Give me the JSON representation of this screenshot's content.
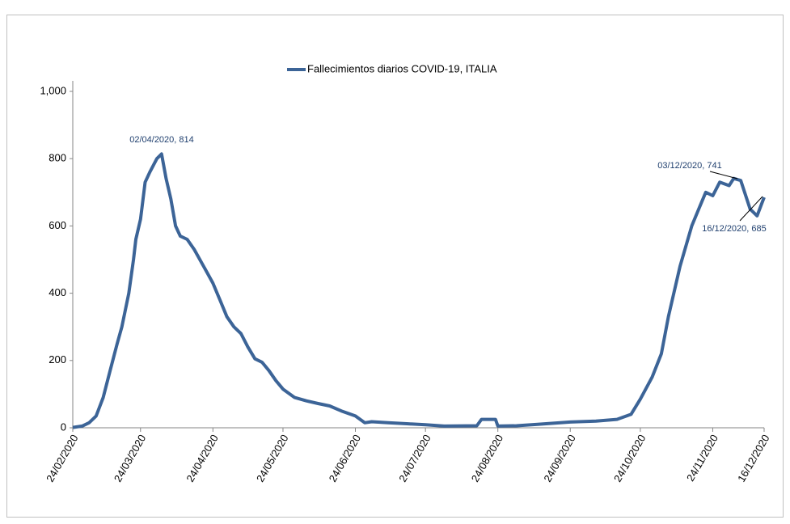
{
  "chart_data": {
    "type": "line",
    "series": [
      {
        "name": "Fallecimientos diarios COVID-19, ITALIA",
        "color": "#3c6497",
        "values": [
          1,
          5,
          15,
          35,
          90,
          170,
          250,
          300,
          400,
          500,
          560,
          620,
          730,
          760,
          800,
          814,
          740,
          680,
          600,
          570,
          560,
          530,
          480,
          430,
          380,
          330,
          300,
          280,
          240,
          205,
          195,
          170,
          140,
          115,
          90,
          80,
          72,
          65,
          50,
          35,
          15,
          18,
          15,
          12,
          9,
          5,
          6,
          25,
          25,
          5,
          6,
          10,
          17,
          20,
          25,
          40,
          85,
          150,
          220,
          330,
          480,
          600,
          650,
          700,
          690,
          730,
          720,
          741,
          735,
          650,
          630,
          685
        ]
      }
    ],
    "x": [
      "24/02/2020",
      "28/02/2020",
      "02/03/2020",
      "05/03/2020",
      "08/03/2020",
      "11/03/2020",
      "14/03/2020",
      "16/03/2020",
      "19/03/2020",
      "21/03/2020",
      "22/03/2020",
      "24/03/2020",
      "26/03/2020",
      "28/03/2020",
      "31/03/2020",
      "02/04/2020",
      "04/04/2020",
      "06/04/2020",
      "08/04/2020",
      "10/04/2020",
      "13/04/2020",
      "16/04/2020",
      "20/04/2020",
      "24/04/2020",
      "27/04/2020",
      "30/04/2020",
      "03/05/2020",
      "06/05/2020",
      "09/05/2020",
      "12/05/2020",
      "15/05/2020",
      "18/05/2020",
      "21/05/2020",
      "24/05/2020",
      "29/05/2020",
      "03/06/2020",
      "08/06/2020",
      "13/06/2020",
      "18/06/2020",
      "24/06/2020",
      "28/06/2020",
      "01/07/2020",
      "08/07/2020",
      "16/07/2020",
      "24/07/2020",
      "01/08/2020",
      "15/08/2020",
      "17/08/2020",
      "23/08/2020",
      "24/08/2020",
      "01/09/2020",
      "10/09/2020",
      "24/09/2020",
      "05/10/2020",
      "14/10/2020",
      "20/10/2020",
      "24/10/2020",
      "29/10/2020",
      "02/11/2020",
      "05/11/2020",
      "10/11/2020",
      "15/11/2020",
      "18/11/2020",
      "21/11/2020",
      "24/11/2020",
      "27/11/2020",
      "01/12/2020",
      "03/12/2020",
      "06/12/2020",
      "10/12/2020",
      "13/12/2020",
      "16/12/2020"
    ],
    "xlim": [
      "24/02/2020",
      "16/12/2020"
    ],
    "xticks": [
      "24/02/2020",
      "24/03/2020",
      "24/04/2020",
      "24/05/2020",
      "24/06/2020",
      "24/07/2020",
      "24/08/2020",
      "24/09/2020",
      "24/10/2020",
      "24/11/2020",
      "16/12/2020"
    ],
    "ylim": [
      0,
      1000
    ],
    "yticks": [
      0,
      200,
      400,
      600,
      800,
      {
        "value": 1000,
        "label": "1,000"
      }
    ],
    "annotations": [
      "02/04/2020, 814",
      "03/12/2020, 741",
      "16/12/2020, 685"
    ],
    "legend": "top"
  }
}
